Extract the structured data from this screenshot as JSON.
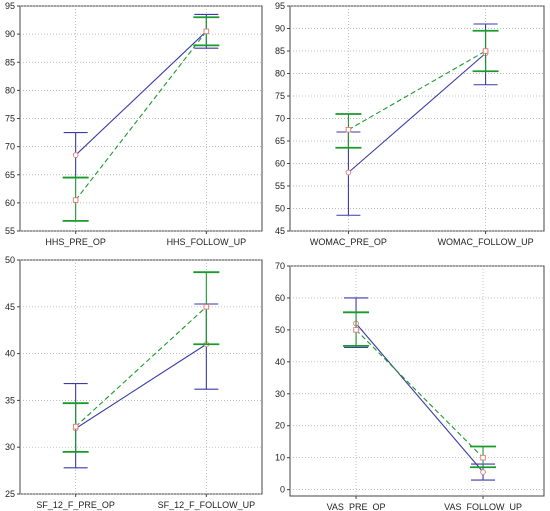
{
  "colors": {
    "series_a": "#3a3aa8",
    "series_b": "#1a9a2a",
    "grid": "#a8a8a8",
    "axis": "#444444",
    "marker_fill": "#ffffff",
    "marker_stroke": "#e07a7a"
  },
  "chart_data": [
    {
      "type": "line",
      "categories": [
        "HHS_PRE_OP",
        "HHS_FOLLOW_UP"
      ],
      "ylim": [
        55,
        95
      ],
      "yticks": [
        55,
        60,
        65,
        70,
        75,
        80,
        85,
        90,
        95
      ],
      "grid": true,
      "series": [
        {
          "style": "solid",
          "values": [
            68.5,
            90.5
          ],
          "err_low": [
            64.5,
            87.5
          ],
          "err_high": [
            72.5,
            93.5
          ]
        },
        {
          "style": "dashed",
          "values": [
            60.5,
            90.5
          ],
          "err_low": [
            56.8,
            88.0
          ],
          "err_high": [
            64.5,
            93.0
          ]
        }
      ]
    },
    {
      "type": "line",
      "categories": [
        "WOMAC_PRE_OP",
        "WOMAC_FOLLOW_UP"
      ],
      "ylim": [
        45,
        95
      ],
      "yticks": [
        45,
        50,
        55,
        60,
        65,
        70,
        75,
        80,
        85,
        90,
        95
      ],
      "grid": true,
      "series": [
        {
          "style": "solid",
          "values": [
            58.0,
            84.5
          ],
          "err_low": [
            48.5,
            77.5
          ],
          "err_high": [
            67.0,
            91.0
          ]
        },
        {
          "style": "dashed",
          "values": [
            67.5,
            85.0
          ],
          "err_low": [
            63.5,
            80.5
          ],
          "err_high": [
            71.0,
            89.5
          ]
        }
      ]
    },
    {
      "type": "line",
      "categories": [
        "SF_12_F_PRE_OP",
        "SF_12_F_FOLLOW_UP"
      ],
      "ylim": [
        25,
        50
      ],
      "yticks": [
        25,
        30,
        35,
        40,
        45,
        50
      ],
      "grid": true,
      "series": [
        {
          "style": "solid",
          "values": [
            32.0,
            41.0
          ],
          "err_low": [
            27.8,
            36.2
          ],
          "err_high": [
            36.8,
            45.3
          ]
        },
        {
          "style": "dashed",
          "values": [
            32.2,
            45.0
          ],
          "err_low": [
            29.5,
            41.0
          ],
          "err_high": [
            34.7,
            48.7
          ]
        }
      ]
    },
    {
      "type": "line",
      "categories": [
        "VAS_PRE_OP",
        "VAS_FOLLOW_UP"
      ],
      "ylim": [
        -2,
        70
      ],
      "yticks": [
        0,
        10,
        20,
        30,
        40,
        50,
        60,
        70
      ],
      "grid": true,
      "series": [
        {
          "style": "solid",
          "values": [
            52.0,
            5.5
          ],
          "err_low": [
            44.5,
            3.0
          ],
          "err_high": [
            60.0,
            8.0
          ]
        },
        {
          "style": "dashed",
          "values": [
            50.0,
            10.0
          ],
          "err_low": [
            45.0,
            7.0
          ],
          "err_high": [
            55.5,
            13.5
          ]
        }
      ]
    }
  ]
}
